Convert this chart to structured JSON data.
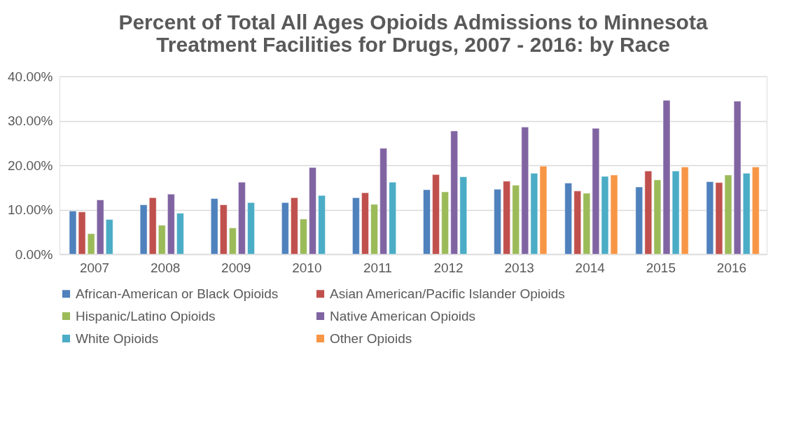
{
  "chart_data": {
    "type": "bar",
    "title": [
      "Percent of Total All Ages Opioids Admissions to Minnesota",
      "Treatment Facilities for Drugs, 2007 - 2016: by Race"
    ],
    "categories": [
      "2007",
      "2008",
      "2009",
      "2010",
      "2011",
      "2012",
      "2013",
      "2014",
      "2015",
      "2016"
    ],
    "series": [
      {
        "name": "African-American or Black Opioids",
        "color": "#4f81bd",
        "values": [
          9.7,
          11.1,
          12.5,
          11.6,
          12.7,
          14.5,
          14.6,
          16.0,
          15.1,
          16.3
        ]
      },
      {
        "name": "Asian American/Pacific Islander Opioids",
        "color": "#c0504d",
        "values": [
          9.5,
          12.7,
          11.1,
          12.7,
          13.8,
          17.9,
          16.4,
          14.2,
          18.7,
          16.1
        ]
      },
      {
        "name": "Hispanic/Latino Opioids",
        "color": "#9bbb59",
        "values": [
          4.6,
          6.5,
          5.9,
          7.9,
          11.2,
          14.0,
          15.5,
          13.7,
          16.7,
          17.8
        ]
      },
      {
        "name": "Native American Opioids",
        "color": "#8064a2",
        "values": [
          12.2,
          13.5,
          16.2,
          19.5,
          23.8,
          27.7,
          28.6,
          28.3,
          34.6,
          34.4
        ]
      },
      {
        "name": "White Opioids",
        "color": "#4bacc6",
        "values": [
          7.8,
          9.2,
          11.6,
          13.2,
          16.2,
          17.4,
          18.2,
          17.5,
          18.7,
          18.2
        ]
      },
      {
        "name": "Other Opioids",
        "color": "#f79646",
        "values": [
          null,
          null,
          null,
          null,
          null,
          null,
          19.8,
          17.8,
          19.6,
          19.6
        ]
      }
    ],
    "ylim": [
      0,
      40
    ],
    "yticks": [
      {
        "value": 0,
        "label": "0.00%"
      },
      {
        "value": 10,
        "label": "10.00%"
      },
      {
        "value": 20,
        "label": "20.00%"
      },
      {
        "value": 30,
        "label": "30.00%"
      },
      {
        "value": 40,
        "label": "40.00%"
      }
    ],
    "grid": "y",
    "legend": "bottom"
  }
}
